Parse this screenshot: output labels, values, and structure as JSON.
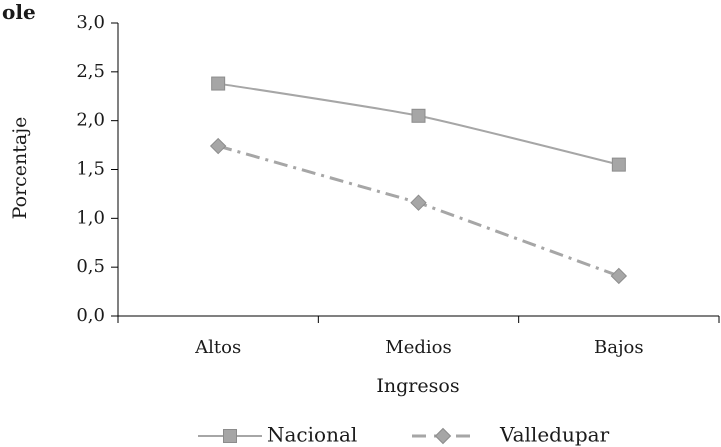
{
  "page": {
    "corner_fragment": "ole"
  },
  "chart_data": {
    "type": "line",
    "categories": [
      "Altos",
      "Medios",
      "Bajos"
    ],
    "xlabel": "Ingresos",
    "ylabel": "Porcentaje",
    "ylim": [
      0,
      3
    ],
    "yticks": [
      "0,0",
      "0,5",
      "1,0",
      "1,5",
      "2,0",
      "2,5",
      "3,0"
    ],
    "ytick_values": [
      0,
      0.5,
      1,
      1.5,
      2,
      2.5,
      3
    ],
    "grid": false,
    "legend_position": "bottom",
    "series": [
      {
        "name": "Nacional",
        "values": [
          2.38,
          2.05,
          1.55
        ],
        "color": "#a6a6a6",
        "marker": "square",
        "line_style": "solid",
        "smooth": true
      },
      {
        "name": "Valledupar",
        "values": [
          1.74,
          1.16,
          0.41
        ],
        "color": "#a6a6a6",
        "marker": "diamond",
        "line_style": "dash-dot",
        "smooth": false
      }
    ]
  }
}
